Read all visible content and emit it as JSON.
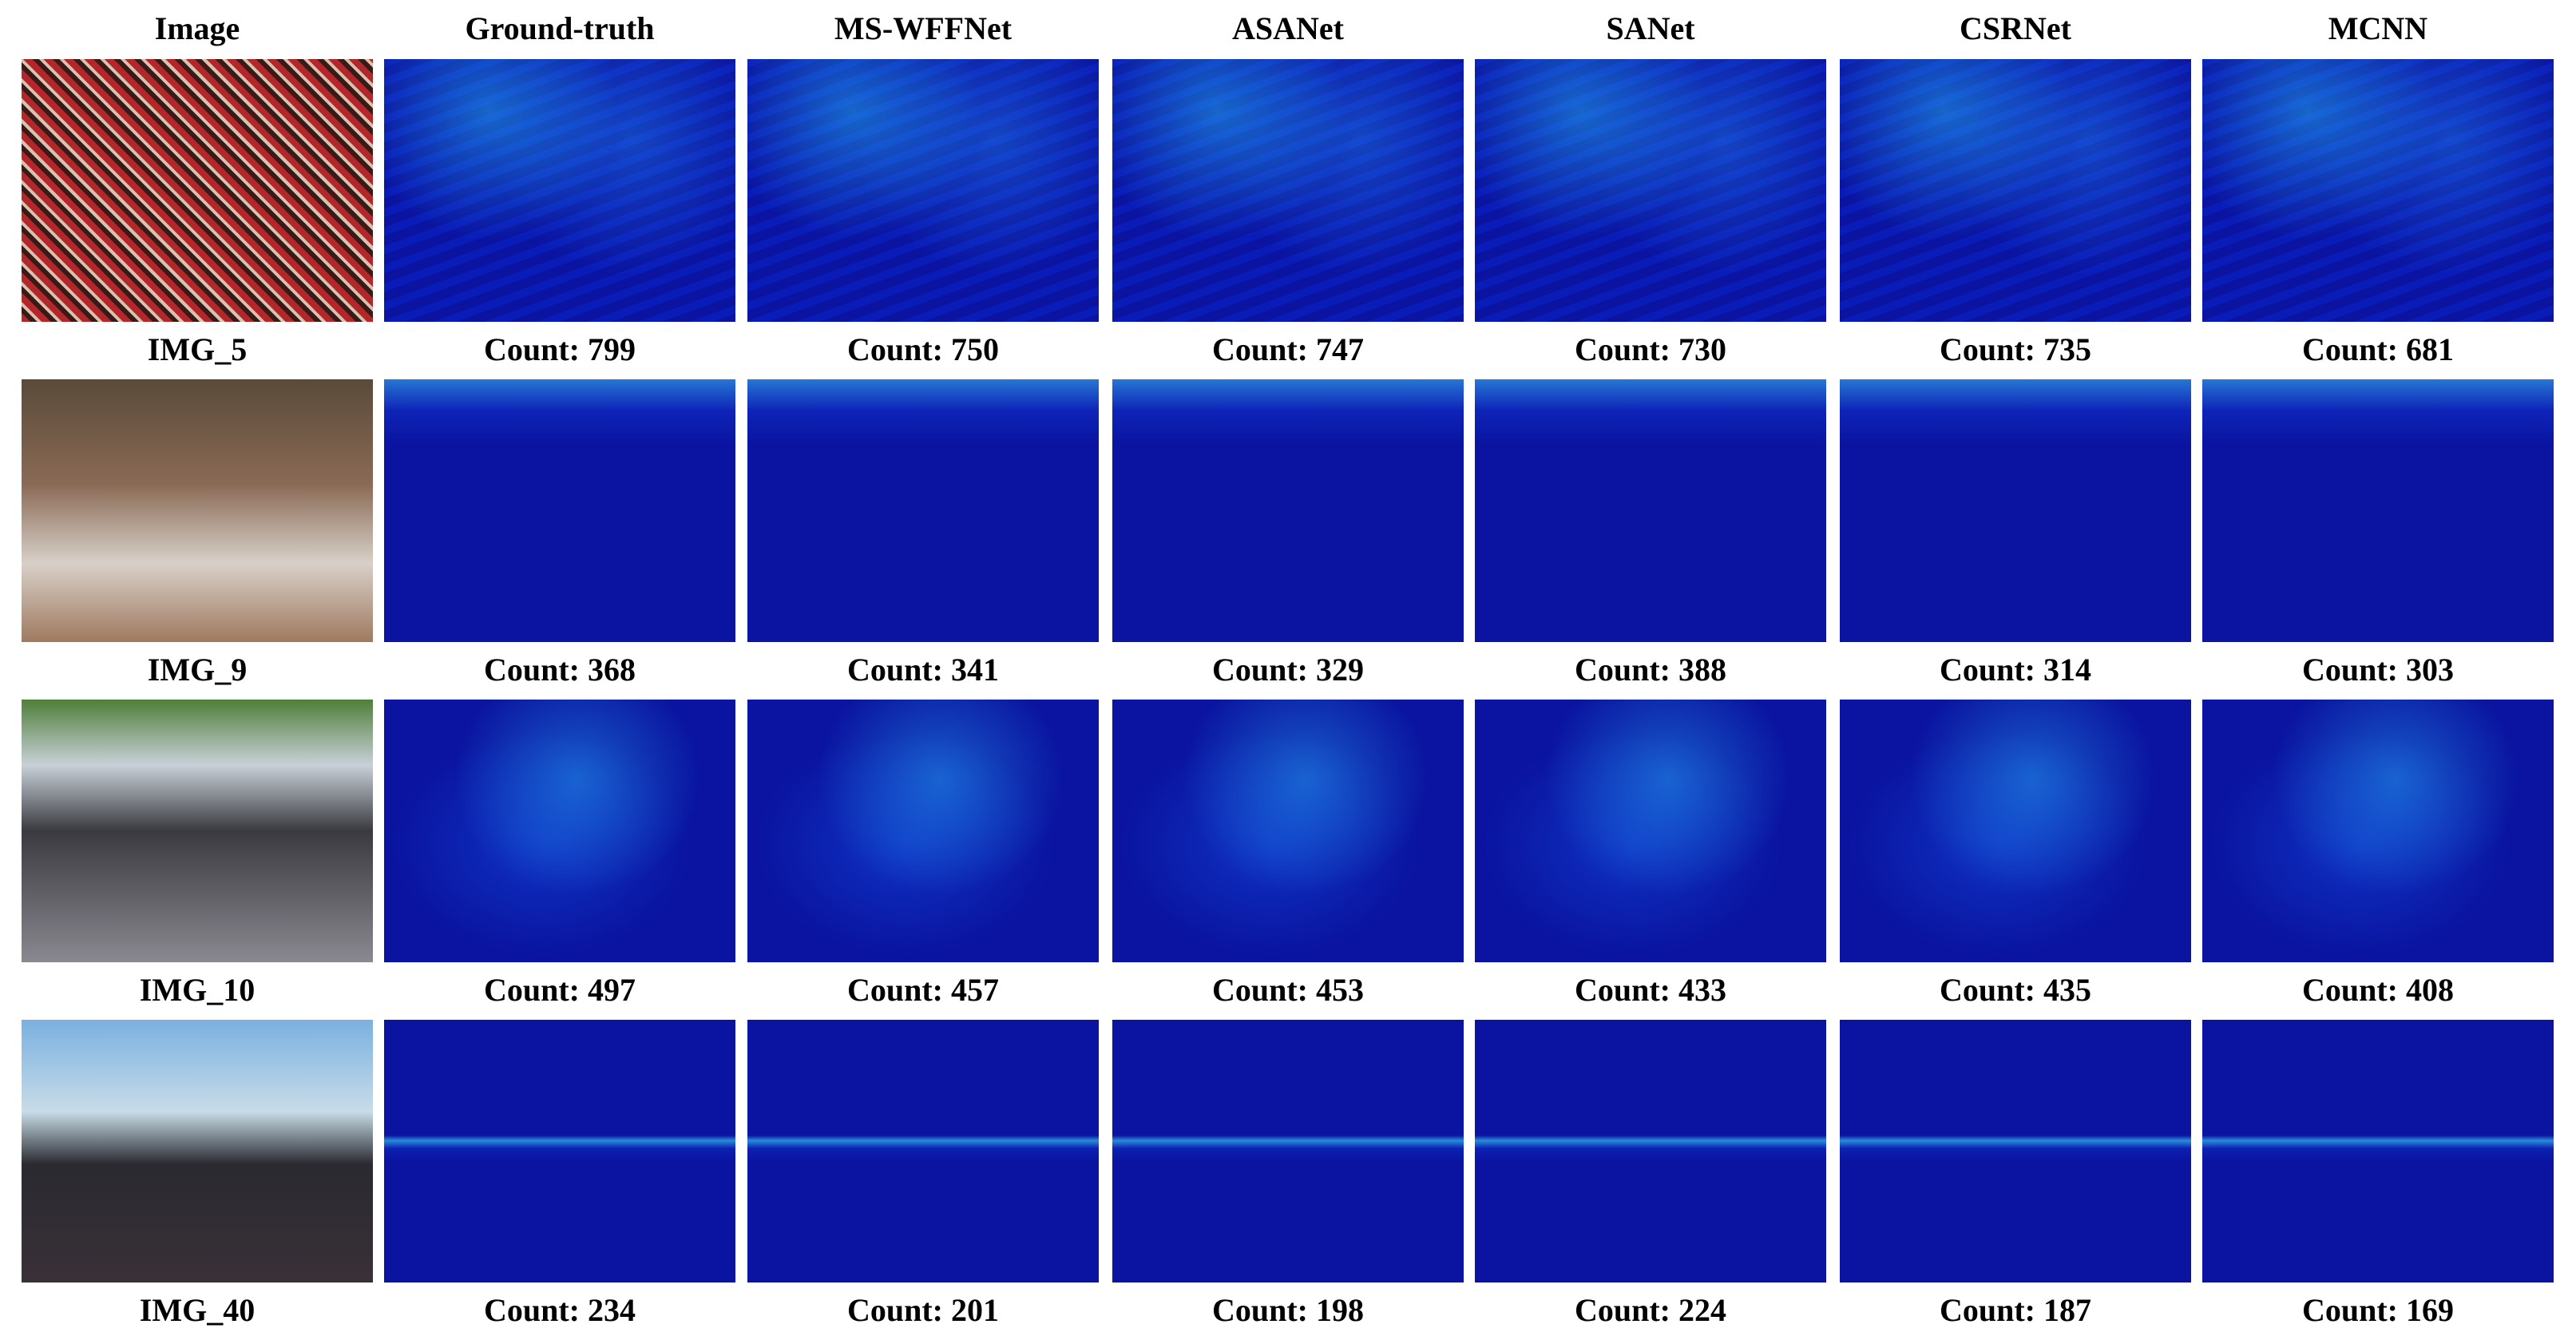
{
  "header": [
    "Image",
    "Ground-truth",
    "MS-WFFNet",
    "ASANet",
    "SANet",
    "CSRNet",
    "MCNN"
  ],
  "rows": [
    {
      "name": "IMG_5",
      "counts": [
        "Count: 799",
        "Count: 750",
        "Count: 747",
        "Count: 730",
        "Count: 735",
        "Count: 681"
      ]
    },
    {
      "name": "IMG_9",
      "counts": [
        "Count: 368",
        "Count: 341",
        "Count: 329",
        "Count: 388",
        "Count: 314",
        "Count: 303"
      ]
    },
    {
      "name": "IMG_10",
      "counts": [
        "Count: 497",
        "Count: 457",
        "Count: 453",
        "Count: 433",
        "Count: 435",
        "Count: 408"
      ]
    },
    {
      "name": "IMG_40",
      "counts": [
        "Count: 234",
        "Count: 201",
        "Count: 198",
        "Count: 224",
        "Count: 187",
        "Count: 169"
      ]
    }
  ]
}
